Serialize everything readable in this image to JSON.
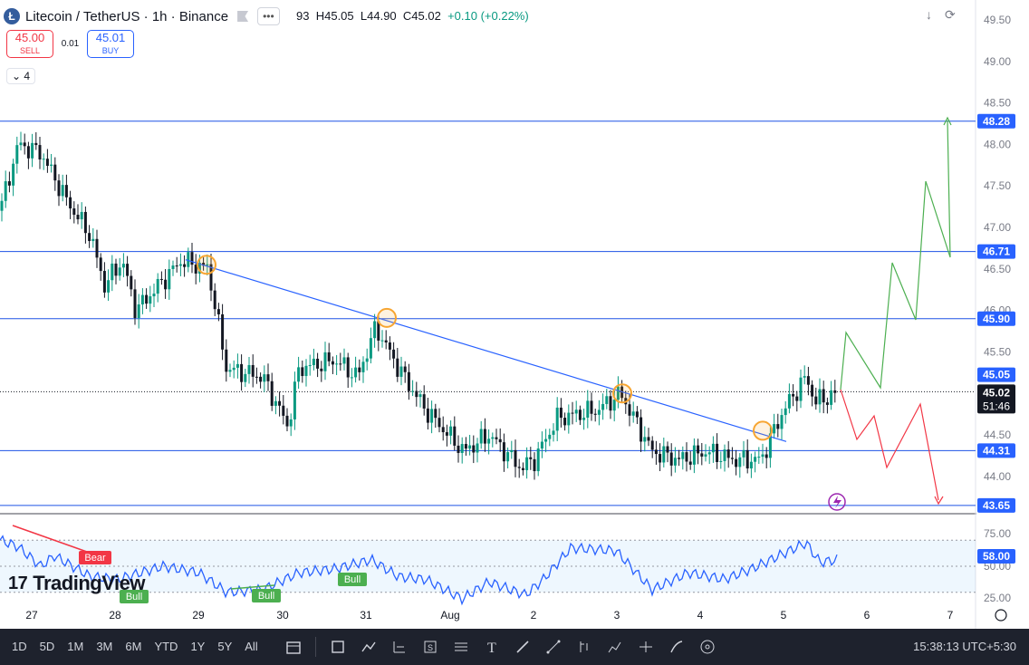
{
  "header": {
    "coin_letter": "Ł",
    "symbol": "Litecoin / TetherUS",
    "interval": "1h",
    "exchange": "Binance",
    "more_label": "•••",
    "ohlc": {
      "open_tail": "93",
      "high": "H45.05",
      "low": "L44.90",
      "close": "C45.02",
      "change": "+0.10 (+0.22%)"
    }
  },
  "trade": {
    "sell_price": "45.00",
    "sell_label": "SELL",
    "spread": "0.01",
    "buy_price": "45.01",
    "buy_label": "BUY"
  },
  "layers_label": "4",
  "top_icons": [
    "download-icon",
    "fullscreen-icon"
  ],
  "price_axis": {
    "ticks": [
      "49.50",
      "49.00",
      "48.50",
      "48.00",
      "47.50",
      "47.00",
      "46.50",
      "46.00",
      "45.50",
      "45.00",
      "44.50",
      "44.00"
    ]
  },
  "levels": [
    {
      "value": "48.28",
      "price": 48.28
    },
    {
      "value": "46.71",
      "price": 46.71
    },
    {
      "value": "45.90",
      "price": 45.9
    },
    {
      "value": "44.31",
      "price": 44.31
    },
    {
      "value": "43.65",
      "price": 43.65
    }
  ],
  "high_label": "45.05",
  "current": {
    "price": "45.02",
    "countdown": "51:46"
  },
  "rsi": {
    "value": "58.00",
    "levels": [
      "75.00",
      "50.00",
      "25.00"
    ],
    "bear_label": "Bear",
    "bull_labels": [
      "Bull",
      "Bull",
      "Bull"
    ]
  },
  "time_axis": [
    "27",
    "28",
    "29",
    "30",
    "31",
    "Aug",
    "2",
    "3",
    "4",
    "5",
    "6",
    "7"
  ],
  "logo": "TradingView",
  "bottom": {
    "timeframes": [
      "1D",
      "5D",
      "1M",
      "3M",
      "6M",
      "YTD",
      "1Y",
      "5Y",
      "All"
    ],
    "clock": "15:38:13 UTC+5:30"
  },
  "colors": {
    "up": "#089981",
    "down": "#131722",
    "line": "#2962ff",
    "proj_up": "#4caf50",
    "proj_down": "#f23645",
    "highlight": "#f7a531"
  }
}
